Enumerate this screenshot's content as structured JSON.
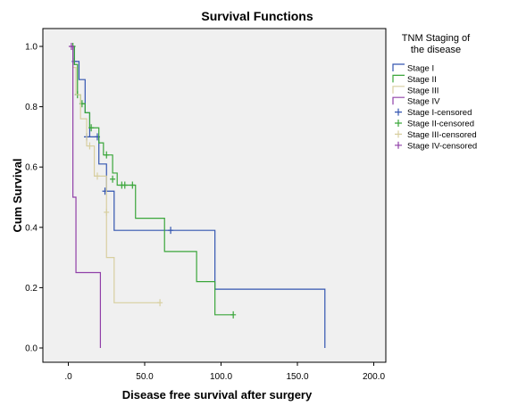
{
  "chart_data": {
    "type": "line",
    "title": "Survival Functions",
    "xlabel": "Disease free survival after surgery",
    "ylabel": "Cum Survival",
    "xlim": [
      0,
      200
    ],
    "ylim": [
      0,
      1.05
    ],
    "x_ticks": [
      0,
      50,
      100,
      150,
      200
    ],
    "x_tick_labels": [
      ".0",
      "50.0",
      "100.0",
      "150.0",
      "200.0"
    ],
    "y_ticks": [
      0,
      0.2,
      0.4,
      0.6,
      0.8,
      1.0
    ],
    "y_tick_labels": [
      "0.0",
      "0.2",
      "0.4",
      "0.6",
      "0.8",
      "1.0"
    ],
    "grid": false,
    "plot_background": "#f0f0f0",
    "legend_title": "TNM Staging of the disease",
    "legend_position": "right",
    "series": [
      {
        "name": "Stage I",
        "color": "#3355b0",
        "steps": [
          [
            2,
            1.0
          ],
          [
            4,
            0.95
          ],
          [
            7,
            0.89
          ],
          [
            11,
            0.78
          ],
          [
            14,
            0.7
          ],
          [
            20,
            0.61
          ],
          [
            25,
            0.52
          ],
          [
            30,
            0.39
          ],
          [
            96,
            0.195
          ],
          [
            168,
            0.0
          ]
        ],
        "censored": [
          [
            4,
            0.95
          ],
          [
            12,
            0.7
          ],
          [
            19,
            0.7
          ],
          [
            24,
            0.52
          ],
          [
            67,
            0.39
          ]
        ]
      },
      {
        "name": "Stage II",
        "color": "#3aa63a",
        "steps": [
          [
            3,
            1.0
          ],
          [
            4,
            0.94
          ],
          [
            6,
            0.84
          ],
          [
            8,
            0.81
          ],
          [
            11,
            0.78
          ],
          [
            14,
            0.73
          ],
          [
            20,
            0.68
          ],
          [
            23,
            0.64
          ],
          [
            29,
            0.58
          ],
          [
            32,
            0.54
          ],
          [
            44,
            0.43
          ],
          [
            63,
            0.32
          ],
          [
            84,
            0.22
          ],
          [
            96,
            0.11
          ],
          [
            108,
            0.11
          ]
        ],
        "censored": [
          [
            3,
            1.0
          ],
          [
            6,
            0.84
          ],
          [
            9,
            0.81
          ],
          [
            15,
            0.73
          ],
          [
            25,
            0.64
          ],
          [
            29,
            0.56
          ],
          [
            35,
            0.54
          ],
          [
            37,
            0.54
          ],
          [
            42,
            0.54
          ],
          [
            108,
            0.11
          ]
        ]
      },
      {
        "name": "Stage III",
        "color": "#d8cfa0",
        "steps": [
          [
            2,
            1.0
          ],
          [
            3,
            0.93
          ],
          [
            5,
            0.84
          ],
          [
            8,
            0.76
          ],
          [
            12,
            0.67
          ],
          [
            17,
            0.57
          ],
          [
            25,
            0.3
          ],
          [
            30,
            0.15
          ],
          [
            60,
            0.15
          ]
        ],
        "censored": [
          [
            14,
            0.67
          ],
          [
            19,
            0.57
          ],
          [
            25,
            0.45
          ],
          [
            60,
            0.15
          ]
        ]
      },
      {
        "name": "Stage IV",
        "color": "#9040a8",
        "steps": [
          [
            2,
            1.0
          ],
          [
            3,
            0.5
          ],
          [
            5,
            0.25
          ],
          [
            21,
            0.0
          ]
        ],
        "censored": [
          [
            2,
            1.0
          ]
        ]
      }
    ],
    "legend_entries": [
      {
        "label": "Stage I",
        "color": "#3355b0",
        "kind": "line"
      },
      {
        "label": "Stage II",
        "color": "#3aa63a",
        "kind": "line"
      },
      {
        "label": "Stage III",
        "color": "#d8cfa0",
        "kind": "line"
      },
      {
        "label": "Stage IV",
        "color": "#9040a8",
        "kind": "line"
      },
      {
        "label": "Stage I-censored",
        "color": "#3355b0",
        "kind": "censor"
      },
      {
        "label": "Stage II-censored",
        "color": "#3aa63a",
        "kind": "censor"
      },
      {
        "label": "Stage III-censored",
        "color": "#d8cfa0",
        "kind": "censor"
      },
      {
        "label": "Stage IV-censored",
        "color": "#9040a8",
        "kind": "censor"
      }
    ]
  }
}
